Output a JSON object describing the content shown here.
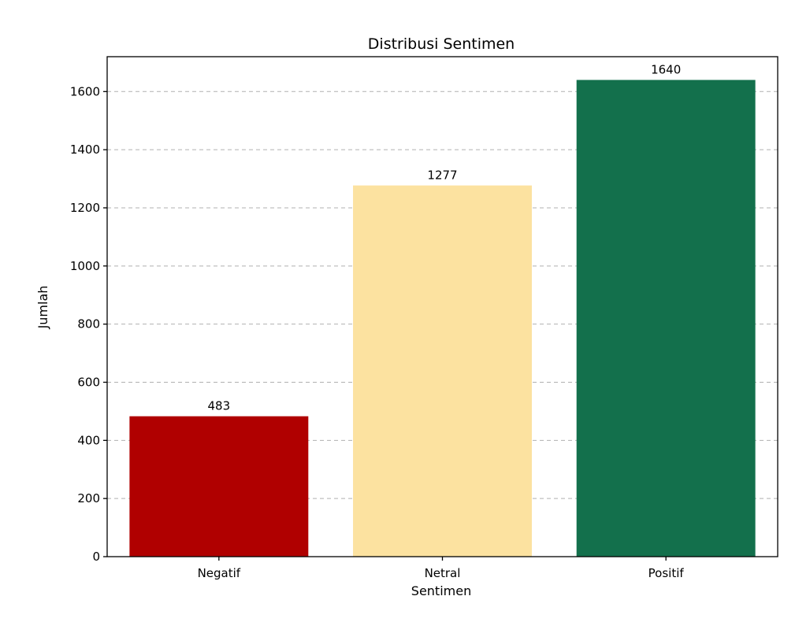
{
  "chart_data": {
    "type": "bar",
    "title": "Distribusi Sentimen",
    "xlabel": "Sentimen",
    "ylabel": "Jumlah",
    "categories": [
      "Negatif",
      "Netral",
      "Positif"
    ],
    "values": [
      483,
      1277,
      1640
    ],
    "colors": [
      "#b00000",
      "#fce2a0",
      "#13704c"
    ],
    "ylim": [
      0,
      1720
    ],
    "yticks": [
      0,
      200,
      400,
      600,
      800,
      1000,
      1200,
      1400,
      1600
    ],
    "grid": "horizontal dashed",
    "legend": "none"
  }
}
